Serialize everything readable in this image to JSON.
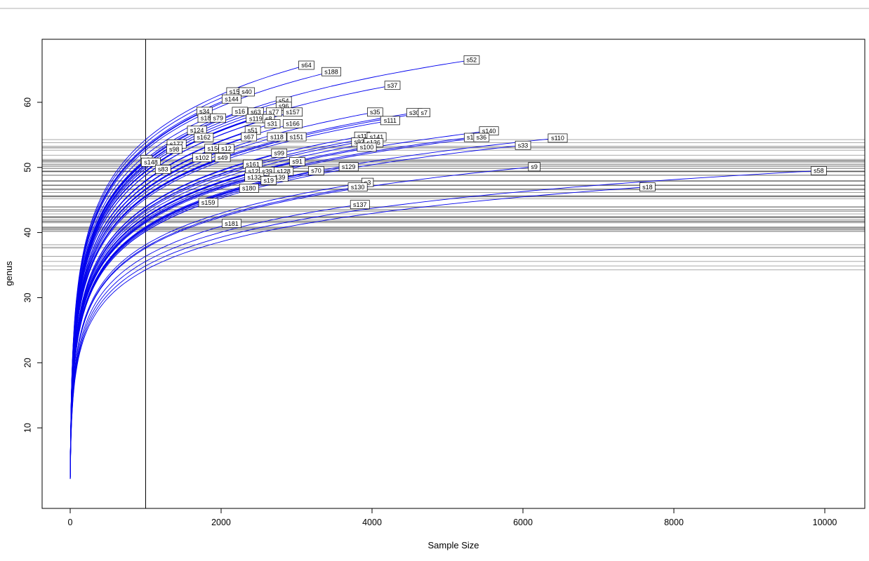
{
  "chart_data": {
    "type": "line",
    "title": "",
    "xlabel": "Sample Size",
    "ylabel": "genus",
    "x_ticks": [
      0,
      2000,
      4000,
      6000,
      8000,
      10000
    ],
    "y_ticks": [
      10,
      20,
      30,
      40,
      50,
      60
    ],
    "xlim": [
      -372,
      10530
    ],
    "ylim": [
      -2.37,
      69.68
    ],
    "grid": false,
    "legend": false,
    "sample_line_x": 1000,
    "colors": {
      "curve": "#0000EE",
      "reference_lines": "#000000",
      "label_box_fill": "#FFFFFF",
      "label_box_border": "#000000",
      "axis": "#000000",
      "window_border": "#B0B0B0"
    },
    "series": [
      {
        "name": "s52",
        "x_end": 5320,
        "y_end": 66.5
      },
      {
        "name": "s64",
        "x_end": 3130,
        "y_end": 65.7
      },
      {
        "name": "s188",
        "x_end": 3460,
        "y_end": 64.7
      },
      {
        "name": "s37",
        "x_end": 4270,
        "y_end": 62.6
      },
      {
        "name": "s155",
        "x_end": 2200,
        "y_end": 61.6
      },
      {
        "name": "s40",
        "x_end": 2340,
        "y_end": 61.6
      },
      {
        "name": "s144",
        "x_end": 2140,
        "y_end": 60.5
      },
      {
        "name": "s54",
        "x_end": 2830,
        "y_end": 60.2
      },
      {
        "name": "s96",
        "x_end": 2830,
        "y_end": 59.4
      },
      {
        "name": "s34",
        "x_end": 1780,
        "y_end": 58.6
      },
      {
        "name": "s16",
        "x_end": 2250,
        "y_end": 58.6
      },
      {
        "name": "s63",
        "x_end": 2460,
        "y_end": 58.5
      },
      {
        "name": "s77",
        "x_end": 2700,
        "y_end": 58.5
      },
      {
        "name": "s157",
        "x_end": 2950,
        "y_end": 58.5
      },
      {
        "name": "s35",
        "x_end": 4040,
        "y_end": 58.5
      },
      {
        "name": "s30",
        "x_end": 4560,
        "y_end": 58.4
      },
      {
        "name": "s7",
        "x_end": 4690,
        "y_end": 58.4
      },
      {
        "name": "s185",
        "x_end": 1820,
        "y_end": 57.6
      },
      {
        "name": "s79",
        "x_end": 1960,
        "y_end": 57.6
      },
      {
        "name": "s119",
        "x_end": 2460,
        "y_end": 57.5
      },
      {
        "name": "s8",
        "x_end": 2630,
        "y_end": 57.5
      },
      {
        "name": "s111",
        "x_end": 4240,
        "y_end": 57.2
      },
      {
        "name": "s31",
        "x_end": 2680,
        "y_end": 56.7
      },
      {
        "name": "s166",
        "x_end": 2950,
        "y_end": 56.7
      },
      {
        "name": "s124",
        "x_end": 1680,
        "y_end": 55.7
      },
      {
        "name": "s51",
        "x_end": 2420,
        "y_end": 55.7
      },
      {
        "name": "s140",
        "x_end": 5550,
        "y_end": 55.6
      },
      {
        "name": "s162",
        "x_end": 1770,
        "y_end": 54.6
      },
      {
        "name": "s67",
        "x_end": 2370,
        "y_end": 54.7
      },
      {
        "name": "s118",
        "x_end": 2740,
        "y_end": 54.7
      },
      {
        "name": "s151",
        "x_end": 3000,
        "y_end": 54.7
      },
      {
        "name": "s11",
        "x_end": 3870,
        "y_end": 54.8
      },
      {
        "name": "s141",
        "x_end": 4060,
        "y_end": 54.7
      },
      {
        "name": "s1",
        "x_end": 5300,
        "y_end": 54.6
      },
      {
        "name": "s36",
        "x_end": 5450,
        "y_end": 54.6
      },
      {
        "name": "s110",
        "x_end": 6460,
        "y_end": 54.5
      },
      {
        "name": "s177",
        "x_end": 1410,
        "y_end": 53.6
      },
      {
        "name": "s92",
        "x_end": 3830,
        "y_end": 53.9
      },
      {
        "name": "s126",
        "x_end": 4020,
        "y_end": 53.8
      },
      {
        "name": "s33",
        "x_end": 6000,
        "y_end": 53.4
      },
      {
        "name": "s98",
        "x_end": 1380,
        "y_end": 52.8
      },
      {
        "name": "s156",
        "x_end": 1910,
        "y_end": 52.9
      },
      {
        "name": "s12",
        "x_end": 2070,
        "y_end": 52.9
      },
      {
        "name": "s100",
        "x_end": 3930,
        "y_end": 53.1
      },
      {
        "name": "s99",
        "x_end": 2770,
        "y_end": 52.2
      },
      {
        "name": "s102",
        "x_end": 1750,
        "y_end": 51.5
      },
      {
        "name": "s49",
        "x_end": 2020,
        "y_end": 51.5
      },
      {
        "name": "s6",
        "x_end": 1010,
        "y_end": 51.2
      },
      {
        "name": "s148",
        "x_end": 1070,
        "y_end": 50.8
      },
      {
        "name": "s91",
        "x_end": 3010,
        "y_end": 50.9
      },
      {
        "name": "s161",
        "x_end": 2420,
        "y_end": 50.5
      },
      {
        "name": "s129",
        "x_end": 3690,
        "y_end": 50.1
      },
      {
        "name": "s9",
        "x_end": 6150,
        "y_end": 50.1
      },
      {
        "name": "s83",
        "x_end": 1230,
        "y_end": 49.7
      },
      {
        "name": "s122",
        "x_end": 2450,
        "y_end": 49.4
      },
      {
        "name": "s39",
        "x_end": 2610,
        "y_end": 49.4
      },
      {
        "name": "s128",
        "x_end": 2830,
        "y_end": 49.4
      },
      {
        "name": "s70",
        "x_end": 3260,
        "y_end": 49.5
      },
      {
        "name": "s58",
        "x_end": 9920,
        "y_end": 49.5
      },
      {
        "name": "s132",
        "x_end": 2440,
        "y_end": 48.5
      },
      {
        "name": "s139",
        "x_end": 2760,
        "y_end": 48.5
      },
      {
        "name": "s19",
        "x_end": 2630,
        "y_end": 48.0
      },
      {
        "name": "s3",
        "x_end": 3940,
        "y_end": 47.7
      },
      {
        "name": "s130",
        "x_end": 3810,
        "y_end": 47.0
      },
      {
        "name": "s18",
        "x_end": 7650,
        "y_end": 47.0
      },
      {
        "name": "s180",
        "x_end": 2370,
        "y_end": 46.8
      },
      {
        "name": "s159",
        "x_end": 1830,
        "y_end": 44.6
      },
      {
        "name": "s137",
        "x_end": 3840,
        "y_end": 44.3
      },
      {
        "name": "s181",
        "x_end": 2140,
        "y_end": 41.4
      }
    ]
  }
}
